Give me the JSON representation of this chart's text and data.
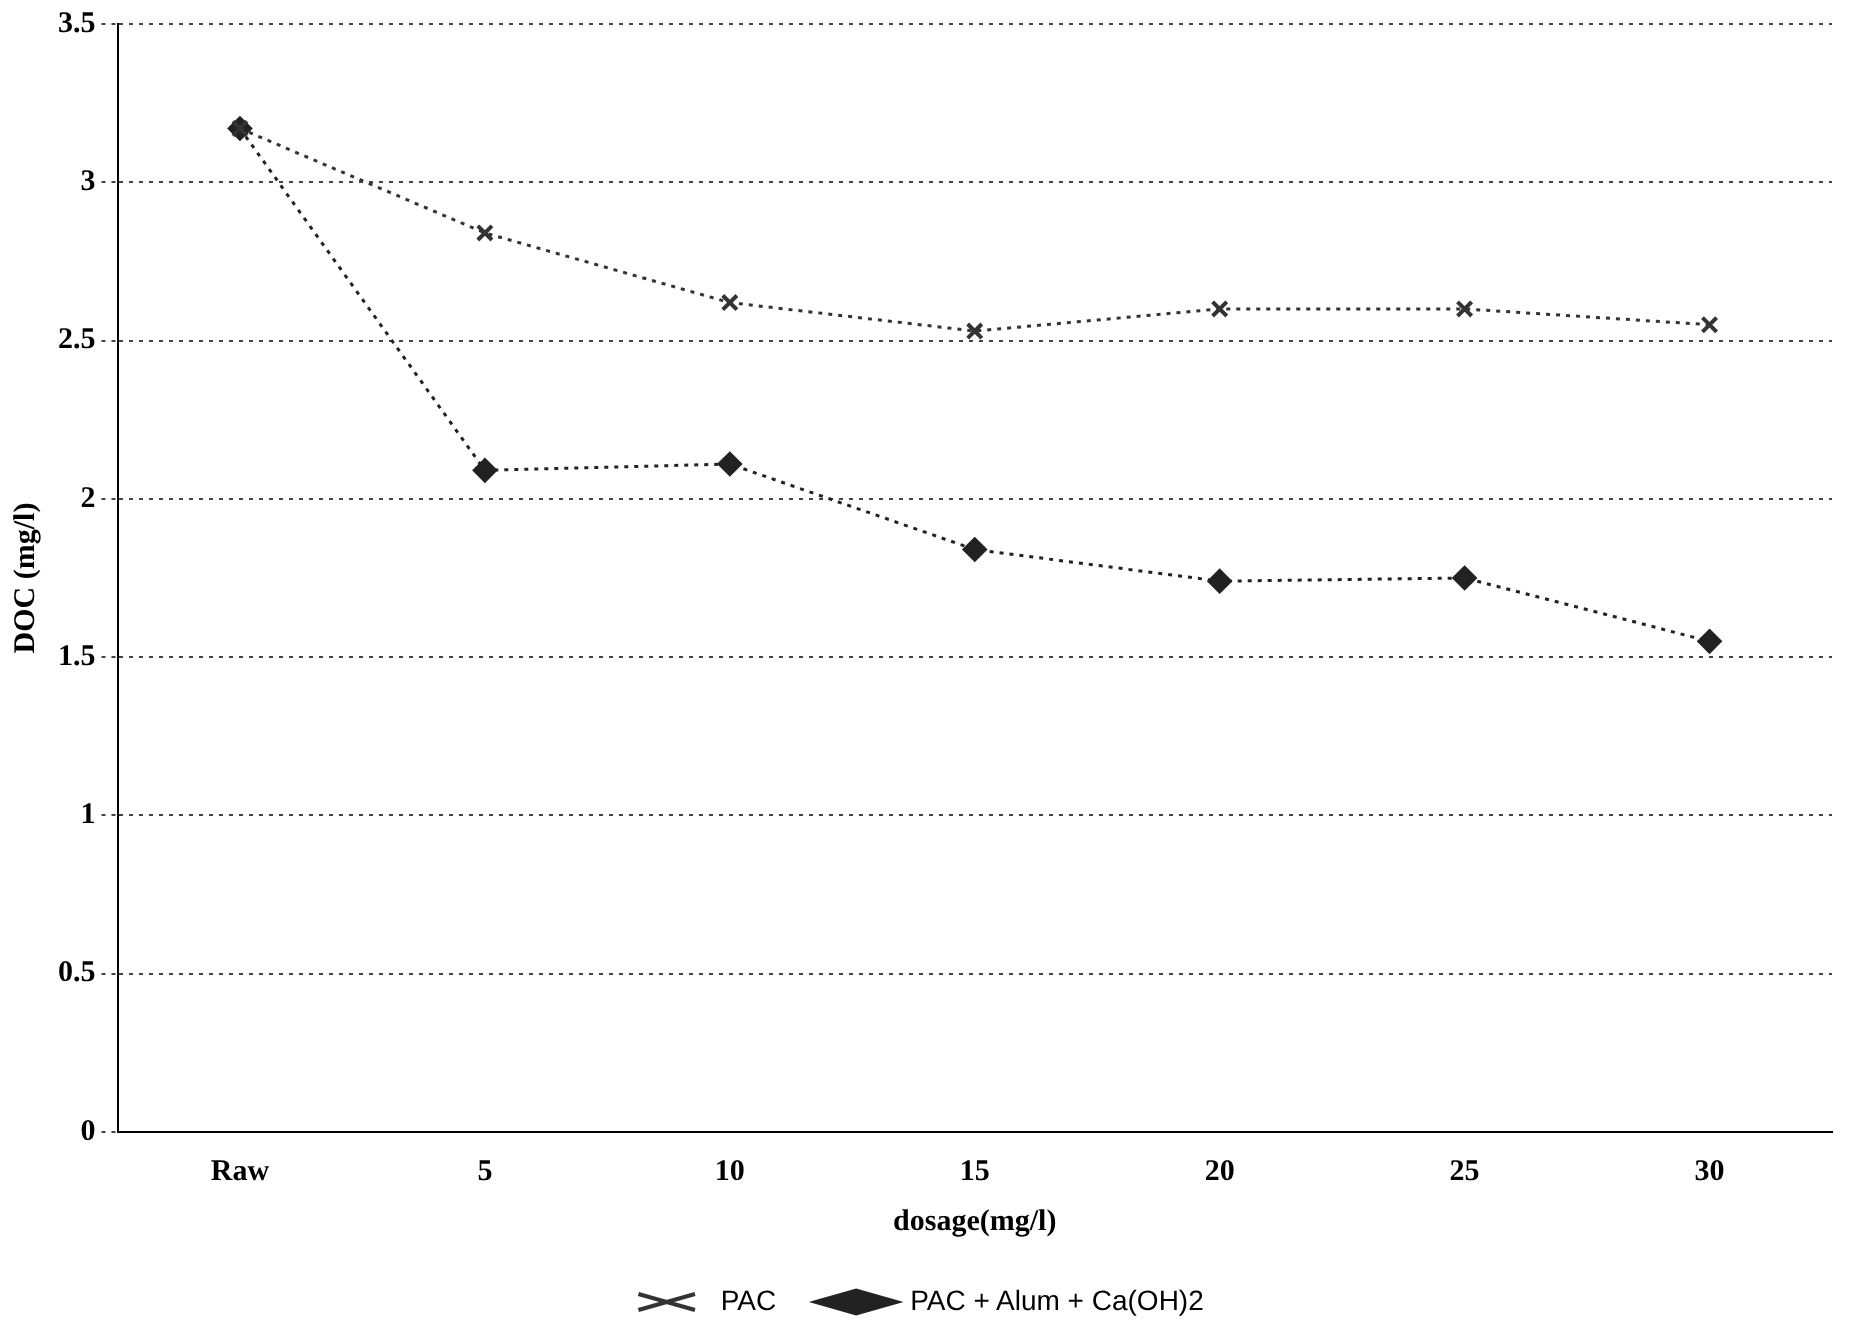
{
  "chart_data": {
    "type": "line",
    "xlabel": "dosage(mg/l)",
    "ylabel": "DOC (mg/l)",
    "categories": [
      "Raw",
      "5",
      "10",
      "15",
      "20",
      "25",
      "30"
    ],
    "ylim": [
      0,
      3.5
    ],
    "yticks": [
      0,
      0.5,
      1,
      1.5,
      2,
      2.5,
      3,
      3.5
    ],
    "grid": "y",
    "legend": "bottom",
    "line_style": "dotted",
    "series": [
      {
        "name": "PAC",
        "color": "#333333",
        "marker": "cross",
        "values": [
          3.17,
          2.84,
          2.62,
          2.53,
          2.6,
          2.6,
          2.55
        ]
      },
      {
        "name": "PAC + Alum + Ca(OH)2",
        "color": "#222222",
        "marker": "diamond",
        "values": [
          3.17,
          2.09,
          2.11,
          1.84,
          1.74,
          1.75,
          1.55
        ]
      }
    ]
  }
}
